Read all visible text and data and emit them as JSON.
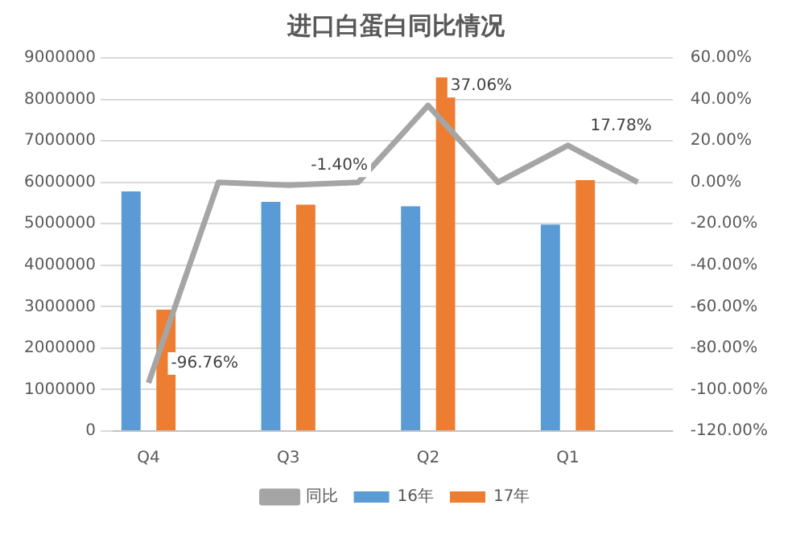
{
  "chart_data": {
    "type": "bar",
    "title": "进口白蛋白同比情况",
    "categories": [
      "Q4",
      null,
      "Q3",
      null,
      "Q2",
      null,
      "Q1",
      null
    ],
    "series": [
      {
        "name": "16年",
        "color": "#5b9bd5",
        "values": [
          5780000,
          null,
          5530000,
          null,
          5420000,
          null,
          4980000,
          null
        ]
      },
      {
        "name": "17年",
        "color": "#ed7d31",
        "values": [
          2930000,
          null,
          5460000,
          null,
          8530000,
          null,
          6050000,
          null
        ]
      },
      {
        "name": "同比",
        "type": "line",
        "axis": "y2",
        "color": "#a5a5a5",
        "values": [
          -96.76,
          0,
          -1.4,
          0,
          37.06,
          0,
          17.78,
          0
        ],
        "value_labels": [
          "-96.76%",
          null,
          "-1.40%",
          null,
          "37.06%",
          null,
          "17.78%",
          null
        ]
      }
    ],
    "ylim": [
      0,
      9000000
    ],
    "yticks": [
      0,
      1000000,
      2000000,
      3000000,
      4000000,
      5000000,
      6000000,
      7000000,
      8000000,
      9000000
    ],
    "y2lim": [
      -120,
      60
    ],
    "y2ticks": [
      {
        "value": -120,
        "label": "-120.00%"
      },
      {
        "value": -100,
        "label": "-100.00%"
      },
      {
        "value": -80,
        "label": "-80.00%"
      },
      {
        "value": -60,
        "label": "-60.00%"
      },
      {
        "value": -40,
        "label": "-40.00%"
      },
      {
        "value": -20,
        "label": "-20.00%"
      },
      {
        "value": 0,
        "label": "0.00%"
      },
      {
        "value": 20,
        "label": "20.00%"
      },
      {
        "value": 40,
        "label": "40.00%"
      },
      {
        "value": 60,
        "label": "60.00%"
      }
    ],
    "grid": "y",
    "legend": "bottom"
  }
}
